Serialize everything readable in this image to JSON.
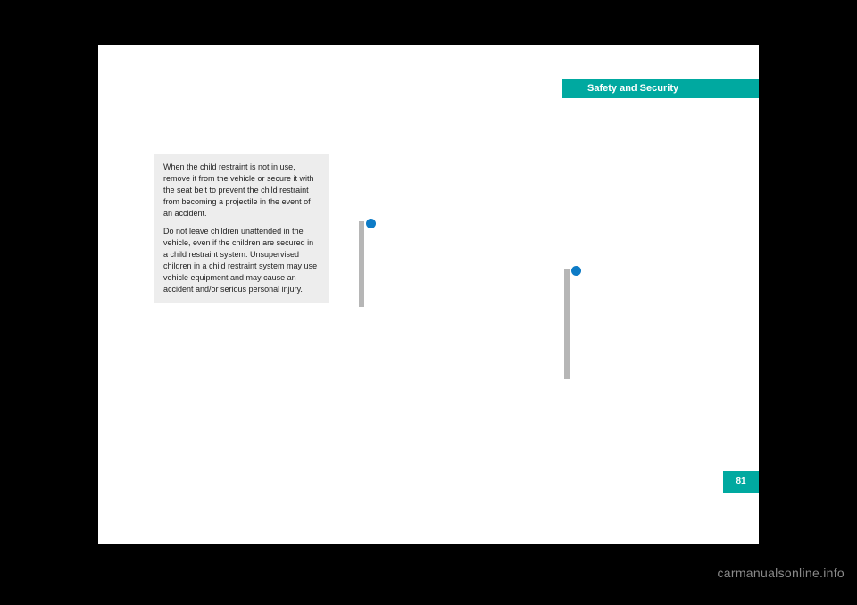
{
  "header": {
    "title": "Safety and Security"
  },
  "warning_box": {
    "paragraph1": "When the child restraint is not in use, remove it from the vehicle or secure it with the seat belt to prevent the child restraint from becoming a projectile in the event of an accident.",
    "paragraph2": "Do not leave children unattended in the vehicle, even if the children are secured in a child restraint system. Unsupervised children in a child restraint system may use vehicle equipment and may cause an accident and/or serious personal injury."
  },
  "page_number": "81",
  "watermark": "carmanualsonline.info",
  "colors": {
    "page_bg": "#ffffff",
    "body_bg": "#000000",
    "accent": "#00a9a0",
    "info_dot": "#0d7bc6",
    "info_bar": "#b6b6b6",
    "warning_bg": "#ededed",
    "watermark_color": "#8a8a8a"
  }
}
